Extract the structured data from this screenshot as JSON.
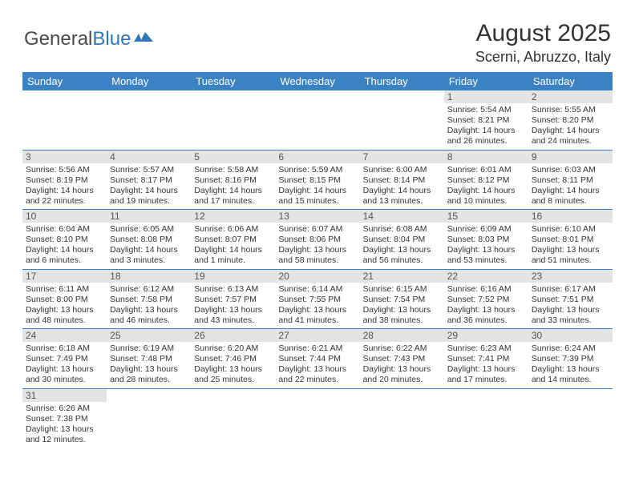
{
  "brand": {
    "part1": "General",
    "part2": "Blue"
  },
  "title": "August 2025",
  "location": "Scerni, Abruzzo, Italy",
  "colors": {
    "header_bg": "#3b82c4",
    "header_text": "#ffffff",
    "daynum_bg": "#e4e4e4",
    "border": "#3b82c4",
    "text": "#333333",
    "logo_blue": "#2f77bb"
  },
  "day_headers": [
    "Sunday",
    "Monday",
    "Tuesday",
    "Wednesday",
    "Thursday",
    "Friday",
    "Saturday"
  ],
  "weeks": [
    [
      null,
      null,
      null,
      null,
      null,
      {
        "n": "1",
        "sr": "5:54 AM",
        "ss": "8:21 PM",
        "dl": "14 hours and 26 minutes."
      },
      {
        "n": "2",
        "sr": "5:55 AM",
        "ss": "8:20 PM",
        "dl": "14 hours and 24 minutes."
      }
    ],
    [
      {
        "n": "3",
        "sr": "5:56 AM",
        "ss": "8:19 PM",
        "dl": "14 hours and 22 minutes."
      },
      {
        "n": "4",
        "sr": "5:57 AM",
        "ss": "8:17 PM",
        "dl": "14 hours and 19 minutes."
      },
      {
        "n": "5",
        "sr": "5:58 AM",
        "ss": "8:16 PM",
        "dl": "14 hours and 17 minutes."
      },
      {
        "n": "6",
        "sr": "5:59 AM",
        "ss": "8:15 PM",
        "dl": "14 hours and 15 minutes."
      },
      {
        "n": "7",
        "sr": "6:00 AM",
        "ss": "8:14 PM",
        "dl": "14 hours and 13 minutes."
      },
      {
        "n": "8",
        "sr": "6:01 AM",
        "ss": "8:12 PM",
        "dl": "14 hours and 10 minutes."
      },
      {
        "n": "9",
        "sr": "6:03 AM",
        "ss": "8:11 PM",
        "dl": "14 hours and 8 minutes."
      }
    ],
    [
      {
        "n": "10",
        "sr": "6:04 AM",
        "ss": "8:10 PM",
        "dl": "14 hours and 6 minutes."
      },
      {
        "n": "11",
        "sr": "6:05 AM",
        "ss": "8:08 PM",
        "dl": "14 hours and 3 minutes."
      },
      {
        "n": "12",
        "sr": "6:06 AM",
        "ss": "8:07 PM",
        "dl": "14 hours and 1 minute."
      },
      {
        "n": "13",
        "sr": "6:07 AM",
        "ss": "8:06 PM",
        "dl": "13 hours and 58 minutes."
      },
      {
        "n": "14",
        "sr": "6:08 AM",
        "ss": "8:04 PM",
        "dl": "13 hours and 56 minutes."
      },
      {
        "n": "15",
        "sr": "6:09 AM",
        "ss": "8:03 PM",
        "dl": "13 hours and 53 minutes."
      },
      {
        "n": "16",
        "sr": "6:10 AM",
        "ss": "8:01 PM",
        "dl": "13 hours and 51 minutes."
      }
    ],
    [
      {
        "n": "17",
        "sr": "6:11 AM",
        "ss": "8:00 PM",
        "dl": "13 hours and 48 minutes."
      },
      {
        "n": "18",
        "sr": "6:12 AM",
        "ss": "7:58 PM",
        "dl": "13 hours and 46 minutes."
      },
      {
        "n": "19",
        "sr": "6:13 AM",
        "ss": "7:57 PM",
        "dl": "13 hours and 43 minutes."
      },
      {
        "n": "20",
        "sr": "6:14 AM",
        "ss": "7:55 PM",
        "dl": "13 hours and 41 minutes."
      },
      {
        "n": "21",
        "sr": "6:15 AM",
        "ss": "7:54 PM",
        "dl": "13 hours and 38 minutes."
      },
      {
        "n": "22",
        "sr": "6:16 AM",
        "ss": "7:52 PM",
        "dl": "13 hours and 36 minutes."
      },
      {
        "n": "23",
        "sr": "6:17 AM",
        "ss": "7:51 PM",
        "dl": "13 hours and 33 minutes."
      }
    ],
    [
      {
        "n": "24",
        "sr": "6:18 AM",
        "ss": "7:49 PM",
        "dl": "13 hours and 30 minutes."
      },
      {
        "n": "25",
        "sr": "6:19 AM",
        "ss": "7:48 PM",
        "dl": "13 hours and 28 minutes."
      },
      {
        "n": "26",
        "sr": "6:20 AM",
        "ss": "7:46 PM",
        "dl": "13 hours and 25 minutes."
      },
      {
        "n": "27",
        "sr": "6:21 AM",
        "ss": "7:44 PM",
        "dl": "13 hours and 22 minutes."
      },
      {
        "n": "28",
        "sr": "6:22 AM",
        "ss": "7:43 PM",
        "dl": "13 hours and 20 minutes."
      },
      {
        "n": "29",
        "sr": "6:23 AM",
        "ss": "7:41 PM",
        "dl": "13 hours and 17 minutes."
      },
      {
        "n": "30",
        "sr": "6:24 AM",
        "ss": "7:39 PM",
        "dl": "13 hours and 14 minutes."
      }
    ],
    [
      {
        "n": "31",
        "sr": "6:26 AM",
        "ss": "7:38 PM",
        "dl": "13 hours and 12 minutes."
      },
      null,
      null,
      null,
      null,
      null,
      null
    ]
  ],
  "labels": {
    "sunrise": "Sunrise: ",
    "sunset": "Sunset: ",
    "daylight": "Daylight: "
  }
}
